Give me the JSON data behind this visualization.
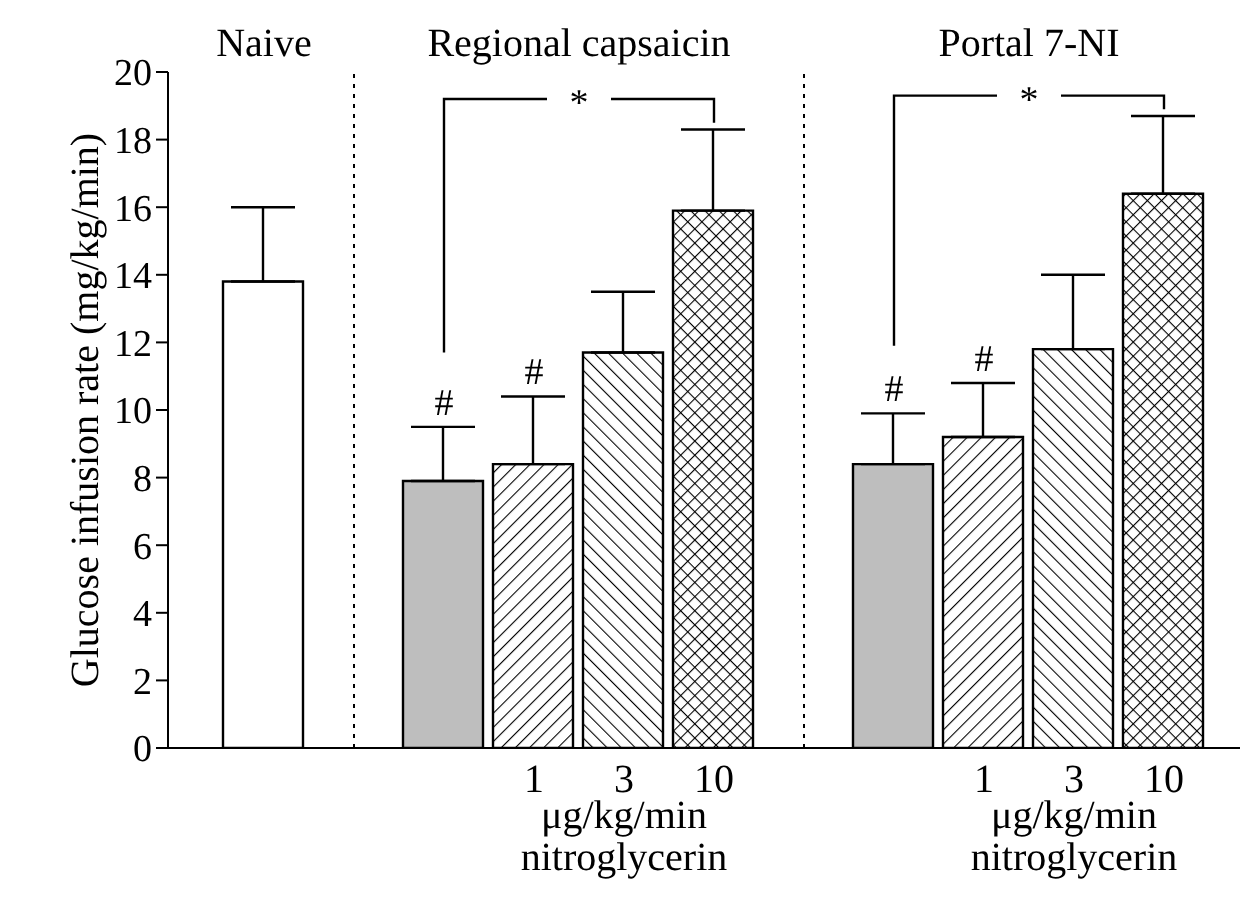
{
  "chart_data": {
    "type": "bar",
    "ylabel": "Glucose infusion rate (mg/kg/min)",
    "categories": [
      null,
      null,
      null,
      "1",
      "3",
      "10",
      null,
      null,
      "1",
      "3",
      "10"
    ],
    "values": [
      13.8,
      null,
      7.9,
      8.4,
      11.7,
      15.9,
      null,
      8.4,
      9.2,
      11.8,
      16.4
    ],
    "errors": [
      [
        13.8,
        16.0
      ],
      null,
      [
        7.9,
        9.5
      ],
      [
        8.4,
        10.4
      ],
      [
        11.7,
        13.5
      ],
      [
        15.9,
        18.3
      ],
      null,
      [
        8.4,
        9.9
      ],
      [
        9.2,
        10.8
      ],
      [
        11.8,
        14.0
      ],
      [
        16.4,
        18.7
      ]
    ],
    "colors": [
      "#ffffff",
      "#ffffff",
      "#bebebe",
      "#000000",
      "#000000",
      "#000000",
      "#ffffff",
      "#bebebe",
      "#000000",
      "#000000",
      "#000000"
    ],
    "ylim": [
      0,
      20
    ],
    "yticks": [
      0,
      2,
      4,
      6,
      8,
      10,
      12,
      14,
      16,
      18,
      20
    ],
    "annotations": [
      "Naive",
      "Regional capsaicin",
      "Portal 7-NI",
      "#",
      "#",
      "#",
      "#",
      "*",
      "*",
      "μg/kg/min nitroglycerin",
      "μg/kg/min nitroglycerin"
    ]
  }
}
